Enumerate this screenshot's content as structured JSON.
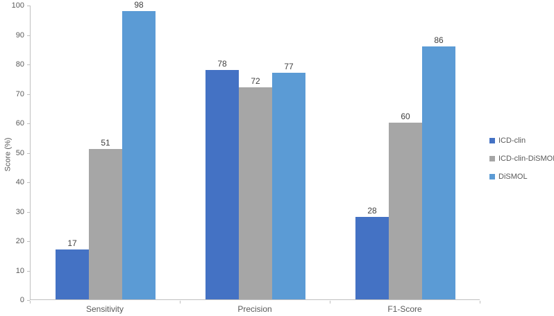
{
  "chart_data": {
    "type": "bar",
    "title": "",
    "categories": [
      "Sensitivity",
      "Precision",
      "F1-Score"
    ],
    "series": [
      {
        "name": "ICD-clin",
        "color": "#4472C4",
        "values": [
          17,
          78,
          28
        ]
      },
      {
        "name": "ICD-clin-DiSMOL",
        "color": "#A6A6A6",
        "values": [
          51,
          72,
          60
        ]
      },
      {
        "name": "DiSMOL",
        "color": "#5B9BD5",
        "values": [
          98,
          77,
          86
        ]
      }
    ],
    "xlabel": "",
    "ylabel": "Score (%)",
    "ylim": [
      0,
      100
    ],
    "ytick_step": 10,
    "ytick_labels": [
      "0",
      "10",
      "20",
      "30",
      "40",
      "50",
      "60",
      "70",
      "80",
      "90",
      "100"
    ],
    "grid": false,
    "legend_position": "right",
    "data_labels": true
  },
  "style": {
    "axis_line_color": "#BFBFBF",
    "tick_label_color": "#595959",
    "data_label_color": "#404040",
    "background": "#FFFFFF"
  }
}
